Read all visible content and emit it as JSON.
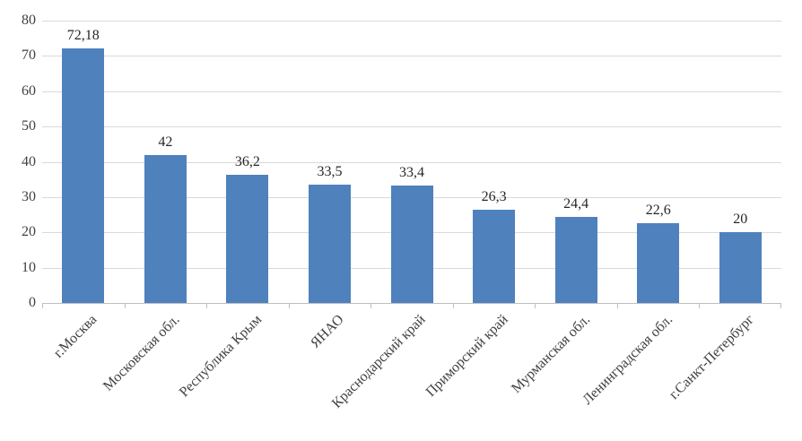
{
  "chart_data": {
    "type": "bar",
    "categories": [
      "г.Москва",
      "Московская обл.",
      "Республика Крым",
      "ЯНАО",
      "Краснодарский край",
      "Приморский край",
      "Мурманская обл.",
      "Ленинградская обл.",
      "г.Санкт-Петербург"
    ],
    "values": [
      72.18,
      42,
      36.2,
      33.5,
      33.4,
      26.3,
      24.4,
      22.6,
      20
    ],
    "data_labels": [
      "72,18",
      "42",
      "36,2",
      "33,5",
      "33,4",
      "26,3",
      "24,4",
      "22,6",
      "20"
    ],
    "title": "",
    "xlabel": "",
    "ylabel": "",
    "ylim": [
      0,
      80
    ],
    "ytick_step": 10,
    "ytick_labels": [
      "0",
      "10",
      "20",
      "30",
      "40",
      "50",
      "60",
      "70",
      "80"
    ],
    "grid": true,
    "legend": false,
    "x_label_rotation_deg": -45,
    "colors": {
      "bar_fill": "#4f81bd",
      "gridline": "#d9d9d9",
      "axis_line": "#bfbfbf",
      "data_label_text": "#262626",
      "axis_label_text": "#404040",
      "background": "#ffffff"
    }
  }
}
